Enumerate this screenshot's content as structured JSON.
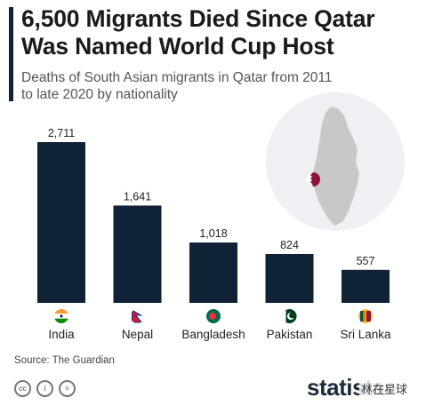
{
  "title": "6,500 Migrants Died Since Qatar Was Named World Cup Host",
  "subtitle": "Deaths of South Asian migrants in Qatar from 2011 to late 2020 by nationality",
  "source": "Source: The Guardian",
  "brand": "statista",
  "watermark": "林在星球",
  "colors": {
    "bar": "#0f2236",
    "accent": "#0f2236",
    "map_circle": "#eef0f3",
    "map_land": "#c8c8c8",
    "qatar_flag": "#8a1538"
  },
  "license_icons": [
    "cc-icon",
    "attribution-icon",
    "no-derivatives-icon"
  ],
  "chart_data": {
    "type": "bar",
    "categories": [
      "India",
      "Nepal",
      "Bangladesh",
      "Pakistan",
      "Sri Lanka"
    ],
    "values": [
      2711,
      1641,
      1018,
      824,
      557
    ],
    "value_labels": [
      "2,711",
      "1,641",
      "1,018",
      "824",
      "557"
    ],
    "flag_icons": [
      "india-flag-icon",
      "nepal-flag-icon",
      "bangladesh-flag-icon",
      "pakistan-flag-icon",
      "sri-lanka-flag-icon"
    ],
    "title": "6,500 Migrants Died Since Qatar Was Named World Cup Host",
    "ylim": [
      0,
      2711
    ],
    "grid": false,
    "legend": "none"
  }
}
